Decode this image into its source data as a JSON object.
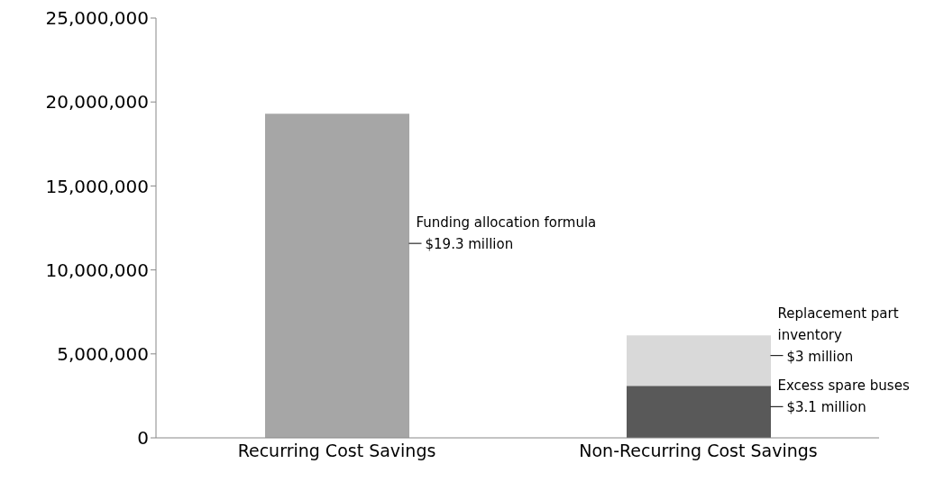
{
  "chart_data": {
    "type": "bar",
    "stacked": true,
    "categories": [
      "Recurring Cost Savings",
      "Non-Recurring Cost Savings"
    ],
    "series": [
      {
        "name": "Funding allocation formula",
        "color": "#a6a6a6",
        "values": [
          19300000,
          null
        ],
        "value_labels": [
          "$19.3 million",
          null
        ]
      },
      {
        "name": "Excess spare buses",
        "color": "#595959",
        "values": [
          null,
          3100000
        ],
        "value_labels": [
          null,
          "$3.1 million"
        ]
      },
      {
        "name": "Replacement part inventory",
        "color": "#d9d9d9",
        "values": [
          null,
          3000000
        ],
        "value_labels": [
          null,
          "$3 million"
        ]
      }
    ],
    "ylim": [
      0,
      25000000
    ],
    "yticks": [
      0,
      {
        "value": 5000000,
        "label": "5,000,000"
      },
      {
        "value": 10000000,
        "label": "10,000,000"
      },
      {
        "value": 15000000,
        "label": "15,000,000"
      },
      {
        "value": 20000000,
        "label": "20,000,000"
      },
      {
        "value": 25000000,
        "label": "25,000,000"
      }
    ],
    "grid": false,
    "legend": false
  }
}
